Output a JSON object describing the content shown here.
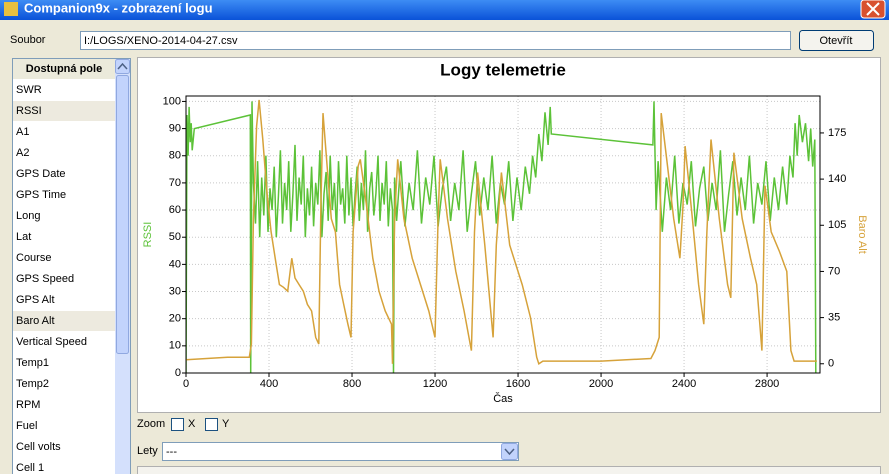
{
  "window": {
    "title": "Companion9x - zobrazení logu"
  },
  "file": {
    "label": "Soubor",
    "path": "I:/LOGS/XENO-2014-04-27.csv",
    "button": "Otevřít"
  },
  "fields": {
    "header": "Dostupná pole",
    "items": [
      "SWR",
      "RSSI",
      "A1",
      "A2",
      "GPS Date",
      "GPS Time",
      "Long",
      "Lat",
      "Course",
      "GPS Speed",
      "GPS Alt",
      "Baro Alt",
      "Vertical Speed",
      "Temp1",
      "Temp2",
      "RPM",
      "Fuel",
      "Cell volts",
      "Cell 1"
    ],
    "selected": [
      1,
      11
    ]
  },
  "zoom": {
    "label": "Zoom",
    "x": "X",
    "y": "Y"
  },
  "flights": {
    "label": "Lety",
    "value": "---"
  },
  "chart_data": {
    "type": "line",
    "title": "Logy telemetrie",
    "xlabel": "Čas",
    "ylabel": "RSSI",
    "y2label": "Baro Alt",
    "xlim": [
      0,
      3055
    ],
    "xticks": [
      0,
      400,
      800,
      1200,
      1600,
      2000,
      2400,
      2800
    ],
    "ylim": [
      0,
      102
    ],
    "yticks": [
      0,
      10,
      20,
      30,
      40,
      50,
      60,
      70,
      80,
      90,
      100
    ],
    "y2lim": [
      -7,
      203
    ],
    "y2ticks": [
      0,
      35,
      70,
      105,
      140,
      175
    ],
    "grid": true,
    "series": [
      {
        "name": "RSSI",
        "color": "#5cc238",
        "x": [
          0,
          5,
          10,
          15,
          20,
          25,
          30,
          40,
          310,
          312,
          318,
          325,
          335,
          345,
          355,
          365,
          375,
          385,
          395,
          405,
          415,
          425,
          435,
          445,
          455,
          465,
          475,
          485,
          495,
          505,
          515,
          525,
          535,
          545,
          555,
          565,
          575,
          585,
          595,
          605,
          615,
          625,
          635,
          645,
          655,
          665,
          675,
          685,
          695,
          705,
          715,
          725,
          735,
          745,
          755,
          765,
          775,
          785,
          795,
          805,
          815,
          825,
          835,
          845,
          855,
          865,
          875,
          885,
          895,
          905,
          915,
          925,
          935,
          945,
          955,
          965,
          975,
          985,
          995,
          1000,
          1005,
          1015,
          1035,
          1055,
          1075,
          1095,
          1115,
          1135,
          1155,
          1175,
          1195,
          1215,
          1235,
          1255,
          1275,
          1295,
          1315,
          1335,
          1355,
          1375,
          1395,
          1415,
          1435,
          1455,
          1475,
          1495,
          1515,
          1535,
          1555,
          1575,
          1595,
          1615,
          1635,
          1655,
          1670,
          1685,
          1700,
          1715,
          1730,
          1745,
          1755,
          1760,
          2250,
          2255,
          2265,
          2275,
          2295,
          2315,
          2335,
          2355,
          2375,
          2395,
          2415,
          2435,
          2455,
          2475,
          2495,
          2515,
          2535,
          2555,
          2575,
          2595,
          2615,
          2635,
          2655,
          2675,
          2695,
          2715,
          2735,
          2755,
          2775,
          2795,
          2815,
          2835,
          2855,
          2875,
          2895,
          2910,
          2925,
          2935,
          2945,
          2955,
          2970,
          2985,
          3000,
          3010,
          3020,
          3030,
          3035
        ],
        "values": [
          0,
          95,
          80,
          98,
          85,
          92,
          82,
          90,
          95,
          0,
          100,
          70,
          55,
          78,
          50,
          72,
          58,
          80,
          52,
          68,
          60,
          76,
          50,
          65,
          82,
          55,
          70,
          60,
          78,
          52,
          66,
          84,
          56,
          72,
          62,
          80,
          50,
          68,
          58,
          76,
          54,
          70,
          62,
          82,
          50,
          66,
          74,
          56,
          80,
          60,
          70,
          52,
          78,
          62,
          68,
          55,
          80,
          58,
          72,
          54,
          66,
          76,
          56,
          70,
          60,
          82,
          52,
          68,
          74,
          58,
          66,
          80,
          56,
          70,
          62,
          78,
          54,
          68,
          60,
          0,
          72,
          56,
          78,
          54,
          70,
          60,
          82,
          55,
          72,
          62,
          80,
          54,
          68,
          76,
          56,
          70,
          60,
          82,
          52,
          66,
          78,
          58,
          72,
          60,
          80,
          55,
          70,
          62,
          78,
          56,
          72,
          60,
          76,
          66,
          80,
          72,
          88,
          78,
          96,
          84,
          98,
          88,
          84,
          100,
          60,
          78,
          52,
          72,
          60,
          80,
          55,
          70,
          62,
          78,
          54,
          68,
          76,
          56,
          70,
          60,
          82,
          52,
          66,
          78,
          58,
          72,
          60,
          80,
          55,
          70,
          62,
          78,
          56,
          72,
          60,
          76,
          62,
          80,
          72,
          92,
          80,
          95,
          85,
          92,
          78,
          90,
          76,
          86,
          0
        ]
      },
      {
        "name": "Baro Alt",
        "color": "#d6a23a",
        "axis": "y2",
        "x": [
          0,
          100,
          200,
          305,
          315,
          325,
          340,
          352,
          370,
          390,
          410,
          430,
          450,
          470,
          490,
          510,
          525,
          545,
          565,
          585,
          605,
          625,
          640,
          650,
          660,
          680,
          700,
          720,
          740,
          760,
          780,
          795,
          805,
          830,
          840,
          870,
          900,
          930,
          960,
          990,
          995,
          1005,
          1020,
          1050,
          1090,
          1130,
          1170,
          1200,
          1215,
          1225,
          1260,
          1300,
          1340,
          1375,
          1390,
          1405,
          1440,
          1480,
          1495,
          1520,
          1560,
          1600,
          1620,
          1660,
          1690,
          1700,
          1720,
          2000,
          2240,
          2260,
          2280,
          2290,
          2320,
          2350,
          2380,
          2395,
          2405,
          2440,
          2470,
          2495,
          2510,
          2530,
          2570,
          2610,
          2625,
          2640,
          2680,
          2720,
          2750,
          2775,
          2790,
          2820,
          2860,
          2895,
          2915,
          2930,
          3000,
          3040
        ],
        "values": [
          3,
          4,
          5,
          5,
          15,
          110,
          180,
          200,
          170,
          130,
          100,
          80,
          60,
          58,
          55,
          80,
          65,
          60,
          55,
          45,
          40,
          20,
          15,
          120,
          190,
          150,
          110,
          100,
          60,
          45,
          30,
          20,
          100,
          150,
          155,
          120,
          80,
          55,
          40,
          30,
          0,
          110,
          155,
          110,
          80,
          60,
          40,
          20,
          110,
          155,
          110,
          70,
          40,
          10,
          100,
          145,
          90,
          20,
          90,
          145,
          90,
          70,
          60,
          35,
          5,
          0,
          2,
          2,
          4,
          10,
          20,
          190,
          150,
          110,
          80,
          120,
          165,
          110,
          60,
          30,
          100,
          170,
          110,
          60,
          50,
          160,
          110,
          80,
          60,
          10,
          135,
          100,
          85,
          70,
          10,
          2,
          2,
          2
        ]
      }
    ]
  }
}
